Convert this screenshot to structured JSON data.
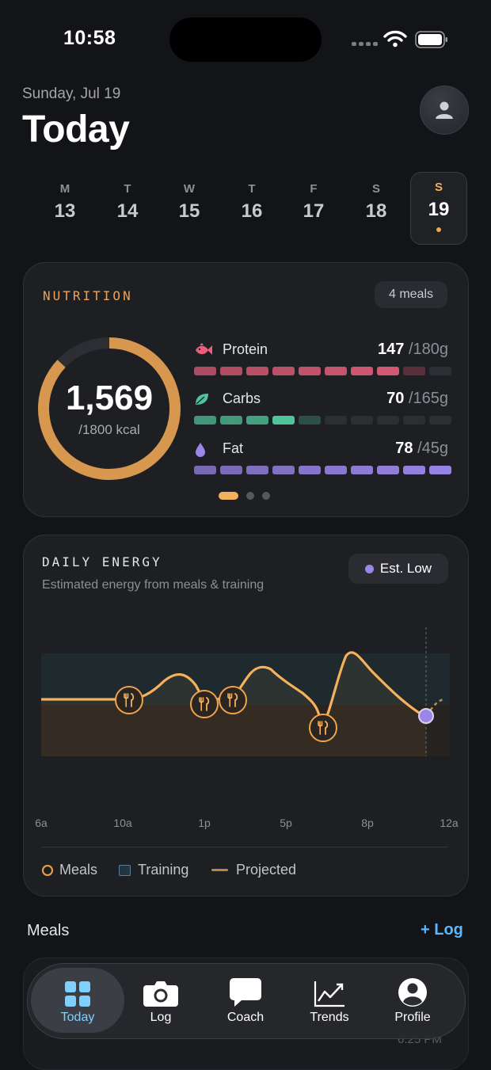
{
  "status": {
    "time": "10:58"
  },
  "header": {
    "date": "Sunday, Jul 19",
    "title": "Today"
  },
  "week": [
    {
      "label": "M",
      "num": "13"
    },
    {
      "label": "T",
      "num": "14"
    },
    {
      "label": "W",
      "num": "15"
    },
    {
      "label": "T",
      "num": "16"
    },
    {
      "label": "F",
      "num": "17"
    },
    {
      "label": "S",
      "num": "18"
    },
    {
      "label": "S",
      "num": "19",
      "selected": true
    }
  ],
  "nutrition": {
    "label": "NUTRITION",
    "meals_badge": "4 meals",
    "calories": "1,569",
    "calories_goal": "/1800 kcal",
    "calorie_progress": 0.87,
    "macros": [
      {
        "name": "Protein",
        "value": "147",
        "goal": " /180g",
        "icon": "fish-icon",
        "color": "#e35d7a",
        "filled": 8,
        "total": 10
      },
      {
        "name": "Carbs",
        "value": "70",
        "goal": " /165g",
        "icon": "leaf-icon",
        "color": "#4fc49a",
        "filled": 4,
        "total": 10
      },
      {
        "name": "Fat",
        "value": "78",
        "goal": " /45g",
        "icon": "drop-icon",
        "color": "#9b86e8",
        "filled": 10,
        "total": 10
      }
    ],
    "page_index": 0,
    "page_count": 3
  },
  "energy": {
    "label": "DAILY ENERGY",
    "subtitle": "Estimated energy from meals & training",
    "status_badge": "Est. Low",
    "status_color": "#9b86e8",
    "axis_labels": [
      "6a",
      "10a",
      "1p",
      "5p",
      "8p",
      "12a"
    ],
    "legend": {
      "meals": "Meals",
      "training": "Training",
      "projected": "Projected"
    }
  },
  "meals": {
    "heading": "Meals",
    "log_link": "+ Log",
    "preview_time": "6:25 PM"
  },
  "tabs": [
    {
      "label": "Today",
      "icon": "grid-icon",
      "active": true
    },
    {
      "label": "Log",
      "icon": "camera-icon"
    },
    {
      "label": "Coach",
      "icon": "chat-bubble-icon"
    },
    {
      "label": "Trends",
      "icon": "trend-chart-icon"
    },
    {
      "label": "Profile",
      "icon": "profile-icon"
    }
  ],
  "colors": {
    "accent": "#f2a24a",
    "link": "#5ab8ff",
    "energy_line": "#f5b15c"
  }
}
